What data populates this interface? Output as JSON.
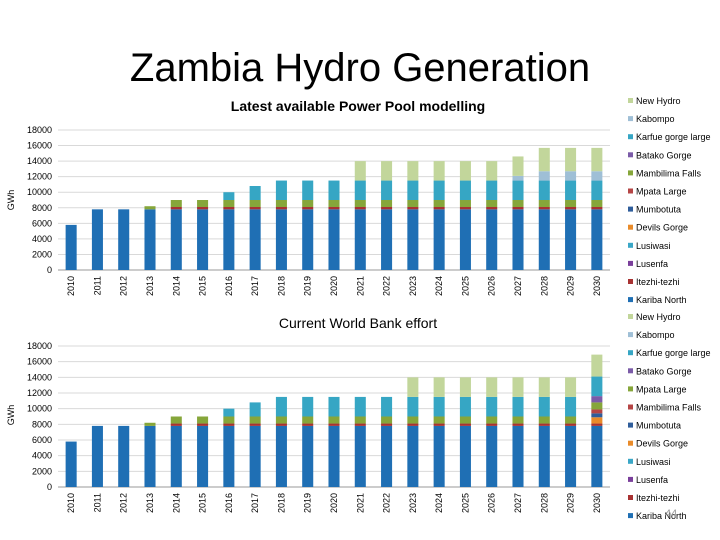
{
  "title": "Zambia Hydro Generation",
  "page_number": "44",
  "chart_data": [
    {
      "type": "bar",
      "stacked": true,
      "title": "Latest available Power Pool modelling",
      "ylabel": "GWh",
      "ylim": [
        0,
        18000
      ],
      "yticks": [
        0,
        2000,
        4000,
        6000,
        8000,
        10000,
        12000,
        14000,
        16000,
        18000
      ],
      "grid": true,
      "legend": "right",
      "categories": [
        "2010",
        "2011",
        "2012",
        "2013",
        "2014",
        "2015",
        "2016",
        "2017",
        "2018",
        "2019",
        "2020",
        "2021",
        "2022",
        "2023",
        "2024",
        "2025",
        "2026",
        "2027",
        "2028",
        "2029",
        "2030"
      ],
      "series": [
        {
          "name": "Kariba North",
          "color": "#1f6fb4",
          "values": [
            5800,
            7800,
            7800,
            7800,
            7800,
            7800,
            7800,
            7800,
            7800,
            7800,
            7800,
            7800,
            7800,
            7800,
            7800,
            7800,
            7800,
            7800,
            7800,
            7800,
            7800
          ]
        },
        {
          "name": "Itezhi-tezhi",
          "color": "#a83232",
          "values": [
            0,
            0,
            0,
            0,
            300,
            300,
            300,
            300,
            300,
            300,
            300,
            300,
            300,
            300,
            300,
            300,
            300,
            300,
            300,
            300,
            300
          ]
        },
        {
          "name": "Lusenfa",
          "color": "#7a3f9b",
          "values": [
            0,
            0,
            0,
            0,
            0,
            0,
            0,
            0,
            0,
            0,
            0,
            0,
            0,
            0,
            0,
            0,
            0,
            0,
            0,
            0,
            0
          ]
        },
        {
          "name": "Lusiwasi",
          "color": "#3aa7c7",
          "values": [
            0,
            0,
            0,
            0,
            0,
            0,
            0,
            0,
            0,
            0,
            0,
            0,
            0,
            0,
            0,
            0,
            0,
            0,
            0,
            0,
            0
          ]
        },
        {
          "name": "Devils Gorge",
          "color": "#e98b2a",
          "values": [
            0,
            0,
            0,
            0,
            0,
            0,
            0,
            0,
            0,
            0,
            0,
            0,
            0,
            0,
            0,
            0,
            0,
            0,
            0,
            0,
            0
          ]
        },
        {
          "name": "Mumbotuta",
          "color": "#2f5d9b",
          "values": [
            0,
            0,
            0,
            0,
            0,
            0,
            0,
            0,
            0,
            0,
            0,
            0,
            0,
            0,
            0,
            0,
            0,
            0,
            0,
            0,
            0
          ]
        },
        {
          "name": "Mpata Large",
          "color": "#b54545",
          "values": [
            0,
            0,
            0,
            0,
            0,
            0,
            0,
            0,
            0,
            0,
            0,
            0,
            0,
            0,
            0,
            0,
            0,
            0,
            0,
            0,
            0
          ]
        },
        {
          "name": "Mambilima Falls",
          "color": "#86a63a",
          "values": [
            0,
            0,
            0,
            400,
            900,
            900,
            900,
            900,
            900,
            900,
            900,
            900,
            900,
            900,
            900,
            900,
            900,
            900,
            900,
            900,
            900
          ]
        },
        {
          "name": "Batako Gorge",
          "color": "#7b5ba8",
          "values": [
            0,
            0,
            0,
            0,
            0,
            0,
            0,
            0,
            0,
            0,
            0,
            0,
            0,
            0,
            0,
            0,
            0,
            0,
            0,
            0,
            0
          ]
        },
        {
          "name": "Karfue gorge large",
          "color": "#36a6c4",
          "values": [
            0,
            0,
            0,
            0,
            0,
            0,
            1000,
            1800,
            2500,
            2500,
            2500,
            2500,
            2500,
            2500,
            2500,
            2500,
            2500,
            2500,
            2500,
            2500,
            2500
          ]
        },
        {
          "name": "Kabompo",
          "color": "#9fbfd6",
          "values": [
            0,
            0,
            0,
            0,
            0,
            0,
            0,
            0,
            0,
            0,
            0,
            0,
            0,
            0,
            0,
            0,
            0,
            600,
            1200,
            1200,
            1200
          ]
        },
        {
          "name": "New Hydro",
          "color": "#c2d69b",
          "values": [
            0,
            0,
            0,
            0,
            0,
            0,
            0,
            0,
            0,
            0,
            0,
            2500,
            2500,
            2500,
            2500,
            2500,
            2500,
            2500,
            3000,
            3000,
            3000
          ]
        }
      ]
    },
    {
      "type": "bar",
      "stacked": true,
      "title": "Current World Bank effort",
      "ylabel": "GWh",
      "ylim": [
        0,
        18000
      ],
      "yticks": [
        0,
        2000,
        4000,
        6000,
        8000,
        10000,
        12000,
        14000,
        16000,
        18000
      ],
      "grid": true,
      "legend": "right",
      "categories": [
        "2010",
        "2011",
        "2012",
        "2013",
        "2014",
        "2015",
        "2016",
        "2017",
        "2018",
        "2019",
        "2020",
        "2021",
        "2022",
        "2023",
        "2024",
        "2025",
        "2026",
        "2027",
        "2028",
        "2029",
        "2030"
      ],
      "series": [
        {
          "name": "Kariba North",
          "color": "#1f6fb4",
          "values": [
            5800,
            7800,
            7800,
            7800,
            7800,
            7800,
            7800,
            7800,
            7800,
            7800,
            7800,
            7800,
            7800,
            7800,
            7800,
            7800,
            7800,
            7800,
            7800,
            7800,
            7800
          ]
        },
        {
          "name": "Itezhi-tezhi",
          "color": "#a83232",
          "values": [
            0,
            0,
            0,
            0,
            300,
            300,
            300,
            300,
            300,
            300,
            300,
            300,
            300,
            300,
            300,
            300,
            300,
            300,
            300,
            300,
            300
          ]
        },
        {
          "name": "Lusenfa",
          "color": "#7a3f9b",
          "values": [
            0,
            0,
            0,
            0,
            0,
            0,
            0,
            0,
            0,
            0,
            0,
            0,
            0,
            0,
            0,
            0,
            0,
            0,
            0,
            0,
            0
          ]
        },
        {
          "name": "Lusiwasi",
          "color": "#3aa7c7",
          "values": [
            0,
            0,
            0,
            0,
            0,
            0,
            0,
            0,
            0,
            0,
            0,
            0,
            0,
            0,
            0,
            0,
            0,
            0,
            0,
            0,
            0
          ]
        },
        {
          "name": "Devils Gorge",
          "color": "#e98b2a",
          "values": [
            0,
            0,
            0,
            0,
            0,
            0,
            0,
            0,
            0,
            0,
            0,
            0,
            0,
            0,
            0,
            0,
            0,
            0,
            0,
            0,
            800
          ]
        },
        {
          "name": "Mumbotuta",
          "color": "#2f5d9b",
          "values": [
            0,
            0,
            0,
            0,
            0,
            0,
            0,
            0,
            0,
            0,
            0,
            0,
            0,
            0,
            0,
            0,
            0,
            0,
            0,
            0,
            500
          ]
        },
        {
          "name": "Mambilima Falls",
          "color": "#b54545",
          "values": [
            0,
            0,
            0,
            0,
            0,
            0,
            0,
            0,
            0,
            0,
            0,
            0,
            0,
            0,
            0,
            0,
            0,
            0,
            0,
            0,
            500
          ]
        },
        {
          "name": "Mpata Large",
          "color": "#86a63a",
          "values": [
            0,
            0,
            0,
            400,
            900,
            900,
            900,
            900,
            900,
            900,
            900,
            900,
            900,
            900,
            900,
            900,
            900,
            900,
            900,
            900,
            900
          ]
        },
        {
          "name": "Batako Gorge",
          "color": "#7b5ba8",
          "values": [
            0,
            0,
            0,
            0,
            0,
            0,
            0,
            0,
            0,
            0,
            0,
            0,
            0,
            0,
            0,
            0,
            0,
            0,
            0,
            0,
            800
          ]
        },
        {
          "name": "Karfue gorge large",
          "color": "#36a6c4",
          "values": [
            0,
            0,
            0,
            0,
            0,
            0,
            1000,
            1800,
            2500,
            2500,
            2500,
            2500,
            2500,
            2500,
            2500,
            2500,
            2500,
            2500,
            2500,
            2500,
            2500
          ]
        },
        {
          "name": "Kabompo",
          "color": "#9fbfd6",
          "values": [
            0,
            0,
            0,
            0,
            0,
            0,
            0,
            0,
            0,
            0,
            0,
            0,
            0,
            0,
            0,
            0,
            0,
            0,
            0,
            0,
            0
          ]
        },
        {
          "name": "New Hydro",
          "color": "#c2d69b",
          "values": [
            0,
            0,
            0,
            0,
            0,
            0,
            0,
            0,
            0,
            0,
            0,
            0,
            0,
            2500,
            2500,
            2500,
            2500,
            2500,
            2500,
            2500,
            2800
          ]
        }
      ]
    }
  ]
}
